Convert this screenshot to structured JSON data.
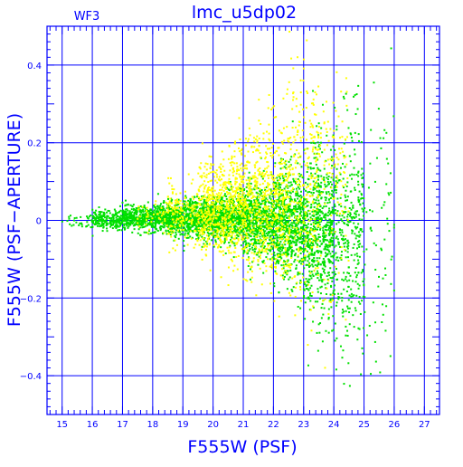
{
  "chart_data": {
    "type": "scatter",
    "title": "lmc_u5dp02",
    "subtitle": "WF3",
    "xlabel": "F555W (PSF)",
    "ylabel": "F555W (PSF−APERTURE)",
    "xlim": [
      14.5,
      27.5
    ],
    "ylim": [
      -0.5,
      0.5
    ],
    "x_ticks": [
      15,
      16,
      17,
      18,
      19,
      20,
      21,
      22,
      23,
      24,
      25,
      26,
      27
    ],
    "y_ticks": [
      -0.4,
      -0.2,
      0,
      0.2,
      0.4
    ],
    "y_tick_labels": [
      "−0.4",
      "−0.2",
      "0",
      "0.2",
      "0.4"
    ],
    "grid": true,
    "series": [
      {
        "color": "#00e000",
        "distribution": [
          {
            "mag_min": 15.0,
            "mag_max": 16.0,
            "count": 30,
            "median": 0.0,
            "spread": 0.01
          },
          {
            "mag_min": 16.0,
            "mag_max": 17.0,
            "count": 220,
            "median": 0.002,
            "spread": 0.012
          },
          {
            "mag_min": 17.0,
            "mag_max": 18.0,
            "count": 350,
            "median": 0.005,
            "spread": 0.015
          },
          {
            "mag_min": 18.0,
            "mag_max": 19.0,
            "count": 450,
            "median": 0.005,
            "spread": 0.02
          },
          {
            "mag_min": 19.0,
            "mag_max": 20.0,
            "count": 550,
            "median": 0.005,
            "spread": 0.025
          },
          {
            "mag_min": 20.0,
            "mag_max": 21.0,
            "count": 600,
            "median": 0.005,
            "spread": 0.03
          },
          {
            "mag_min": 21.0,
            "mag_max": 22.0,
            "count": 650,
            "median": 0.0,
            "spread": 0.045
          },
          {
            "mag_min": 22.0,
            "mag_max": 23.0,
            "count": 700,
            "median": -0.01,
            "spread": 0.07
          },
          {
            "mag_min": 23.0,
            "mag_max": 24.0,
            "count": 650,
            "median": -0.03,
            "spread": 0.11
          },
          {
            "mag_min": 24.0,
            "mag_max": 25.0,
            "count": 350,
            "median": -0.04,
            "spread": 0.14
          },
          {
            "mag_min": 25.0,
            "mag_max": 26.0,
            "count": 70,
            "median": -0.05,
            "spread": 0.18
          }
        ]
      },
      {
        "color": "#ffff00",
        "distribution": [
          {
            "mag_min": 17.5,
            "mag_max": 18.5,
            "count": 40,
            "median": 0.01,
            "spread": 0.02
          },
          {
            "mag_min": 18.5,
            "mag_max": 19.5,
            "count": 150,
            "median": 0.02,
            "spread": 0.04
          },
          {
            "mag_min": 19.5,
            "mag_max": 20.5,
            "count": 400,
            "median": 0.03,
            "spread": 0.06
          },
          {
            "mag_min": 20.5,
            "mag_max": 21.5,
            "count": 450,
            "median": 0.04,
            "spread": 0.08
          },
          {
            "mag_min": 21.5,
            "mag_max": 22.5,
            "count": 400,
            "median": 0.05,
            "spread": 0.11
          },
          {
            "mag_min": 22.5,
            "mag_max": 23.5,
            "count": 300,
            "median": 0.07,
            "spread": 0.14
          },
          {
            "mag_min": 23.5,
            "mag_max": 24.5,
            "count": 120,
            "median": 0.1,
            "spread": 0.17
          }
        ]
      }
    ]
  }
}
